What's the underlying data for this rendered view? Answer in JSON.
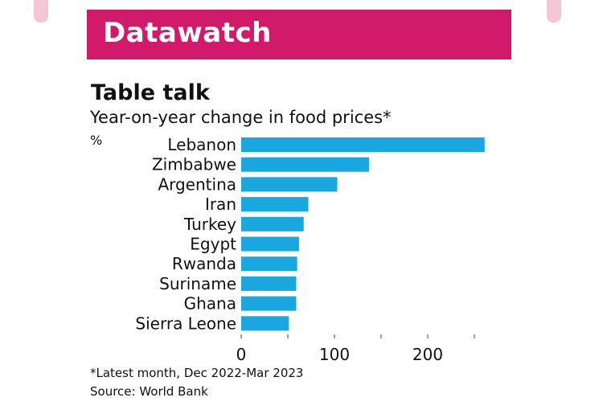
{
  "header": {
    "banner_title": "Datawatch"
  },
  "colors": {
    "banner": "#d21a6a",
    "bar": "#1aa7e0"
  },
  "chart_data": {
    "type": "bar",
    "orientation": "horizontal",
    "title": "Table talk",
    "subtitle": "Year-on-year change in food prices*",
    "unit": "%",
    "categories": [
      "Lebanon",
      "Zimbabwe",
      "Argentina",
      "Iran",
      "Turkey",
      "Egypt",
      "Rwanda",
      "Suriname",
      "Ghana",
      "Sierra Leone"
    ],
    "values": [
      261,
      137,
      103,
      72,
      67,
      62,
      60,
      59,
      59,
      51
    ],
    "xlim": [
      0,
      260
    ],
    "xticks": [
      0,
      100,
      200
    ],
    "grid": false,
    "legend": "none"
  },
  "footnote": "*Latest month, Dec 2022-Mar 2023",
  "source": "Source: World Bank"
}
